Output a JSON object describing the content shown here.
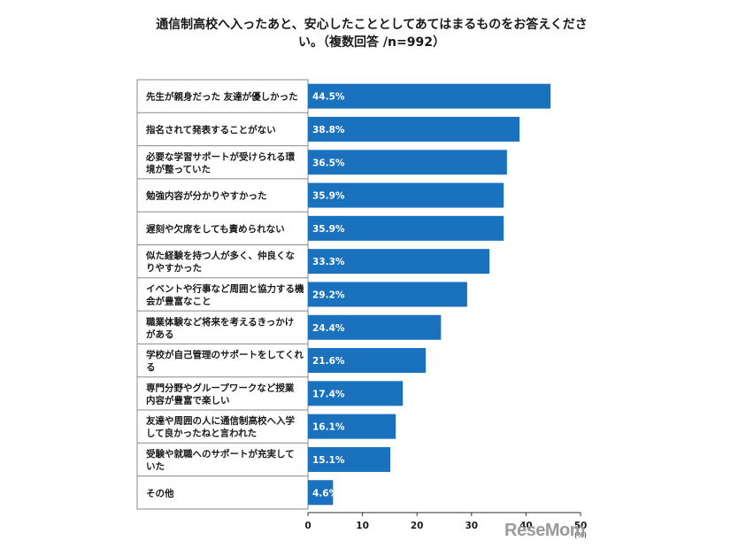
{
  "chart_data": {
    "type": "bar",
    "orientation": "horizontal",
    "title_line1": "通信制高校へ入ったあと、安心したこととしてあてはまるものをお答えくださ",
    "title_line2": "い。（複数回答 /n=992）",
    "categories": [
      [
        "先生が親身だった 友達が優しかった"
      ],
      [
        "指名されて発表することがない"
      ],
      [
        "必要な学習サポートが受けられる環",
        "境が整っていた"
      ],
      [
        "勉強内容が分かりやすかった"
      ],
      [
        "遅刻や欠席をしても責められない"
      ],
      [
        "似た経験を持つ人が多く、仲良くな",
        "りやすかった"
      ],
      [
        "イベントや行事など周囲と協力する機",
        "会が豊富なこと"
      ],
      [
        "職業体験など将来を考えるきっかけ",
        "がある"
      ],
      [
        "学校が自己管理のサポートをしてくれ",
        "る"
      ],
      [
        "専門分野やグループワークなど授業",
        "内容が豊富で楽しい"
      ],
      [
        "友達や周囲の人に通信制高校へ入学",
        "して良かったねと言われた"
      ],
      [
        "受験や就職へのサポートが充実して",
        "いた"
      ],
      [
        "その他"
      ]
    ],
    "values": [
      44.5,
      38.8,
      36.5,
      35.9,
      35.9,
      33.3,
      29.2,
      24.4,
      21.6,
      17.4,
      16.1,
      15.1,
      4.6
    ],
    "value_labels": [
      "44.5%",
      "38.8%",
      "36.5%",
      "35.9%",
      "35.9%",
      "33.3%",
      "29.2%",
      "24.4%",
      "21.6%",
      "17.4%",
      "16.1%",
      "15.1%",
      "4.6%"
    ],
    "xticks": [
      0,
      10,
      20,
      30,
      40,
      50
    ],
    "xtick_labels": [
      "0",
      "10",
      "20",
      "30",
      "40",
      "50"
    ],
    "xunit": "(%)",
    "xlim": [
      0,
      50
    ],
    "bar_color": "#1a72be",
    "grid": false
  },
  "watermark": "ReseMom"
}
